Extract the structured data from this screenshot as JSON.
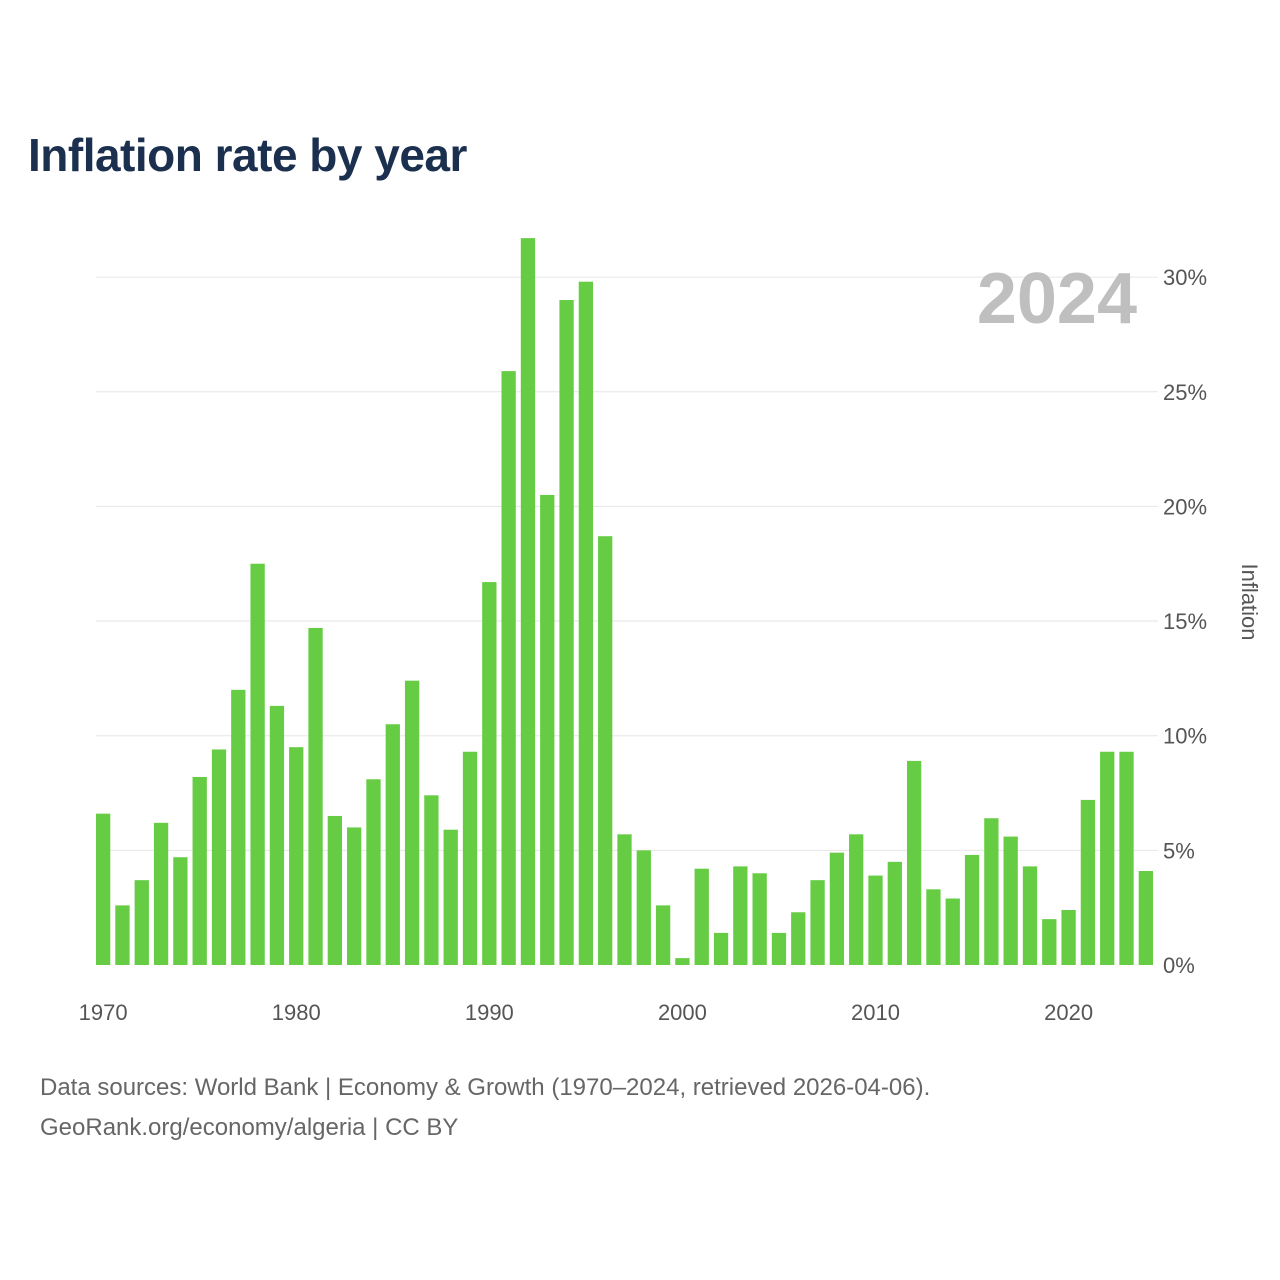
{
  "title": "Inflation rate by year",
  "current_year_label": "2024",
  "source": {
    "line1": "Data sources: World Bank | Economy & Growth (1970–2024, retrieved 2026-04-06).",
    "line2": "GeoRank.org/economy/algeria | CC BY"
  },
  "colors": {
    "bar": "#66cc44",
    "grid": "#e6e6e6",
    "title": "#1b2f4e"
  },
  "chart_data": {
    "type": "bar",
    "title": "Inflation rate by year",
    "xlabel": "",
    "ylabel": "Inflation",
    "ylim": [
      0,
      32
    ],
    "yticks": [
      0,
      5,
      10,
      15,
      20,
      25,
      30
    ],
    "ytick_labels": [
      "0%",
      "5%",
      "10%",
      "15%",
      "20%",
      "25%",
      "30%"
    ],
    "xticks": [
      1970,
      1980,
      1990,
      2000,
      2010,
      2020
    ],
    "xtick_labels": [
      "1970",
      "1980",
      "1990",
      "2000",
      "2010",
      "2020"
    ],
    "y_axis_side": "right",
    "grid": true,
    "categories": [
      1970,
      1971,
      1972,
      1973,
      1974,
      1975,
      1976,
      1977,
      1978,
      1979,
      1980,
      1981,
      1982,
      1983,
      1984,
      1985,
      1986,
      1987,
      1988,
      1989,
      1990,
      1991,
      1992,
      1993,
      1994,
      1995,
      1996,
      1997,
      1998,
      1999,
      2000,
      2001,
      2002,
      2003,
      2004,
      2005,
      2006,
      2007,
      2008,
      2009,
      2010,
      2011,
      2012,
      2013,
      2014,
      2015,
      2016,
      2017,
      2018,
      2019,
      2020,
      2021,
      2022,
      2023,
      2024
    ],
    "values": [
      6.6,
      2.6,
      3.7,
      6.2,
      4.7,
      8.2,
      9.4,
      12.0,
      17.5,
      11.3,
      9.5,
      14.7,
      6.5,
      6.0,
      8.1,
      10.5,
      12.4,
      7.4,
      5.9,
      9.3,
      16.7,
      25.9,
      31.7,
      20.5,
      29.0,
      29.8,
      18.7,
      5.7,
      5.0,
      2.6,
      0.3,
      4.2,
      1.4,
      4.3,
      4.0,
      1.4,
      2.3,
      3.7,
      4.9,
      5.7,
      3.9,
      4.5,
      8.9,
      3.3,
      2.9,
      4.8,
      6.4,
      5.6,
      4.3,
      2.0,
      2.4,
      7.2,
      9.3,
      9.3,
      4.1
    ]
  }
}
